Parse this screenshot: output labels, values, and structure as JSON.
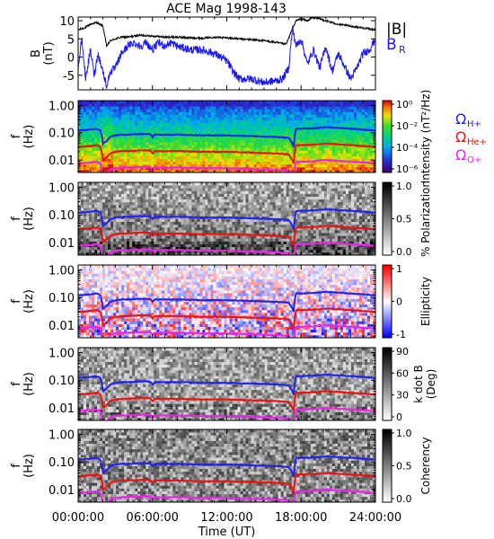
{
  "title": "ACE Mag 1998-143",
  "colors": {
    "b_total": "#000000",
    "b_r": "#1a1aee",
    "omega_h": "#2222ee",
    "omega_he": "#ee1111",
    "omega_o": "#ee22ee"
  },
  "chart_data": [
    {
      "type": "line",
      "panel": "field",
      "ylabel": [
        "B",
        "(nT)"
      ],
      "ylim": [
        -9,
        11
      ],
      "yticks": [
        "10",
        "5",
        "0",
        "-5"
      ],
      "ytick_values": [
        10,
        5,
        0,
        -5
      ],
      "legend": [
        {
          "name": "|B|",
          "color": "#000000",
          "label": "|B|"
        },
        {
          "name": "B_R",
          "color": "#1a1aee",
          "label": "B",
          "sub": "R"
        }
      ],
      "series": [
        {
          "name": "|B|",
          "x_hours": [
            0,
            0.5,
            1.0,
            1.5,
            2.0,
            2.3,
            2.6,
            3.0,
            3.5,
            4.0,
            5.0,
            6.0,
            7.0,
            8.0,
            9.0,
            10.0,
            11.0,
            12.0,
            13.0,
            14.0,
            15.0,
            16.0,
            16.8,
            17.2,
            17.6,
            18.0,
            18.5,
            19.0,
            19.5,
            20.0,
            21.0,
            22.0,
            23.0,
            24.0
          ],
          "values": [
            7.5,
            8.0,
            9.0,
            9.5,
            8.5,
            3.0,
            4.5,
            5.0,
            5.5,
            5.5,
            6.0,
            5.8,
            5.5,
            5.5,
            5.3,
            5.2,
            5.5,
            5.3,
            5.0,
            4.8,
            4.5,
            4.0,
            3.5,
            7.0,
            10.0,
            10.5,
            10.0,
            11.0,
            10.5,
            10.0,
            9.0,
            8.5,
            8.0,
            7.5
          ]
        },
        {
          "name": "B_R",
          "x_hours": [
            0,
            0.3,
            0.6,
            1.0,
            1.3,
            1.6,
            2.0,
            2.3,
            2.6,
            3.0,
            3.5,
            4.0,
            4.5,
            5.0,
            5.5,
            6.0,
            6.5,
            7.0,
            7.5,
            8.0,
            9.0,
            10.0,
            11.0,
            12.0,
            12.5,
            13.0,
            14.0,
            15.0,
            16.0,
            16.5,
            17.0,
            17.3,
            17.6,
            18.0,
            18.5,
            19.0,
            19.5,
            20.0,
            20.5,
            21.0,
            22.0,
            22.5,
            23.0,
            23.5,
            24.0
          ],
          "values": [
            -3,
            5,
            -6,
            2,
            -5,
            1,
            -4,
            -8,
            -4,
            -3,
            1,
            3,
            4,
            3,
            4,
            2,
            4,
            3,
            4,
            3,
            2,
            2,
            1,
            -1,
            -4,
            -6,
            -6,
            -7,
            -6.5,
            -6,
            -3,
            8,
            3,
            5,
            -2,
            2,
            -3,
            3,
            -4,
            1,
            -6,
            -3,
            1,
            2,
            5
          ]
        }
      ]
    },
    {
      "type": "heatmap",
      "panel": "intensity",
      "ylabel": [
        "f",
        "(Hz)"
      ],
      "yticks": [
        "1.00",
        "0.10",
        "0.01"
      ],
      "ytick_values": [
        1.0,
        0.1,
        0.01
      ],
      "colorbar": {
        "label": "Intensity (nT²/Hz)",
        "ticks": [
          "10⁰",
          "10⁻²",
          "10⁻⁴",
          "10⁻⁶"
        ],
        "scale": "rainbow"
      },
      "legend": [
        {
          "name": "Ω_H+",
          "color": "#2222ee"
        },
        {
          "name": "Ω_He+",
          "color": "#ee1111"
        },
        {
          "name": "Ω_O+",
          "color": "#ee22ee"
        }
      ]
    },
    {
      "type": "heatmap",
      "panel": "polarization",
      "ylabel": [
        "f",
        "(Hz)"
      ],
      "yticks": [
        "1.00",
        "0.10",
        "0.01"
      ],
      "colorbar": {
        "label": "% Polarization",
        "ticks": [
          "1.0",
          "0.5",
          "0.0"
        ],
        "scale": "gray"
      }
    },
    {
      "type": "heatmap",
      "panel": "ellipticity",
      "ylabel": [
        "f",
        "(Hz)"
      ],
      "yticks": [
        "1.00",
        "0.10",
        "0.01"
      ],
      "colorbar": {
        "label": "Ellipticity",
        "ticks": [
          "1",
          "0",
          "-1"
        ],
        "scale": "bwr"
      }
    },
    {
      "type": "heatmap",
      "panel": "kdotb",
      "ylabel": [
        "f",
        "(Hz)"
      ],
      "yticks": [
        "1.00",
        "0.10",
        "0.01"
      ],
      "colorbar": {
        "label": "k dot B",
        "label2": "(Deg)",
        "ticks": [
          "90",
          "60",
          "30",
          "0"
        ],
        "scale": "gray"
      }
    },
    {
      "type": "heatmap",
      "panel": "coherency",
      "ylabel": [
        "f",
        "(Hz)"
      ],
      "yticks": [
        "1.00",
        "0.10",
        "0.01"
      ],
      "colorbar": {
        "label": "Coherency",
        "ticks": [
          "1.0",
          "0.5",
          "0.0"
        ],
        "scale": "gray"
      }
    }
  ],
  "gyro_lines": {
    "x_hours": [
      0,
      1.0,
      1.5,
      1.8,
      2.0,
      2.3,
      2.6,
      3.0,
      3.5,
      4.0,
      5.0,
      5.8,
      6.0,
      6.2,
      7.0,
      8.0,
      10.0,
      12.0,
      14.0,
      16.0,
      17.0,
      17.4,
      17.6,
      18.0,
      19.0,
      20.0,
      21.0,
      22.0,
      23.0,
      24.0
    ],
    "omega_h_hz": [
      0.12,
      0.13,
      0.14,
      0.12,
      0.04,
      0.05,
      0.07,
      0.08,
      0.085,
      0.085,
      0.09,
      0.09,
      0.07,
      0.085,
      0.085,
      0.085,
      0.08,
      0.08,
      0.075,
      0.07,
      0.065,
      0.03,
      0.14,
      0.14,
      0.145,
      0.16,
      0.15,
      0.14,
      0.13,
      0.12
    ]
  },
  "xaxis": {
    "label": "Time (UT)",
    "ticks": [
      "00:00:00",
      "06:00:00",
      "12:00:00",
      "18:00:00",
      "24:00:00"
    ],
    "tick_hours": [
      0,
      6,
      12,
      18,
      24
    ]
  }
}
